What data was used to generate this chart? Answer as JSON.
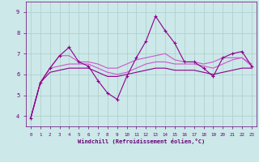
{
  "x": [
    0,
    1,
    2,
    3,
    4,
    5,
    6,
    7,
    8,
    9,
    10,
    11,
    12,
    13,
    14,
    15,
    16,
    17,
    18,
    19,
    20,
    21,
    22,
    23
  ],
  "line_main": [
    3.9,
    5.6,
    6.3,
    6.9,
    7.3,
    6.6,
    6.4,
    5.7,
    5.1,
    4.8,
    5.9,
    6.8,
    7.6,
    8.8,
    8.1,
    7.5,
    6.6,
    6.6,
    6.3,
    5.9,
    6.8,
    7.0,
    7.1,
    6.4
  ],
  "line_upper": [
    3.9,
    5.6,
    6.3,
    6.9,
    6.9,
    6.6,
    6.6,
    6.5,
    6.3,
    6.3,
    6.5,
    6.7,
    6.8,
    6.9,
    7.0,
    6.7,
    6.6,
    6.6,
    6.5,
    6.6,
    6.8,
    6.8,
    6.8,
    6.5
  ],
  "line_mid": [
    3.9,
    5.6,
    6.3,
    6.4,
    6.5,
    6.5,
    6.5,
    6.3,
    6.1,
    6.0,
    6.1,
    6.3,
    6.5,
    6.6,
    6.6,
    6.5,
    6.5,
    6.5,
    6.4,
    6.3,
    6.5,
    6.7,
    6.8,
    6.4
  ],
  "line_lower": [
    3.9,
    5.6,
    6.1,
    6.2,
    6.3,
    6.3,
    6.3,
    6.1,
    5.9,
    5.9,
    6.0,
    6.1,
    6.2,
    6.3,
    6.3,
    6.2,
    6.2,
    6.2,
    6.1,
    6.0,
    6.1,
    6.2,
    6.3,
    6.3
  ],
  "color_dark": "#8b008b",
  "color_light": "#cc55cc",
  "background_color": "#cce8e8",
  "grid_color": "#aacece",
  "text_color": "#660077",
  "xlabel": "Windchill (Refroidissement éolien,°C)",
  "ylim": [
    3.5,
    9.5
  ],
  "xlim": [
    -0.5,
    23.5
  ],
  "yticks": [
    4,
    5,
    6,
    7,
    8,
    9
  ],
  "xticks": [
    0,
    1,
    2,
    3,
    4,
    5,
    6,
    7,
    8,
    9,
    10,
    11,
    12,
    13,
    14,
    15,
    16,
    17,
    18,
    19,
    20,
    21,
    22,
    23
  ]
}
